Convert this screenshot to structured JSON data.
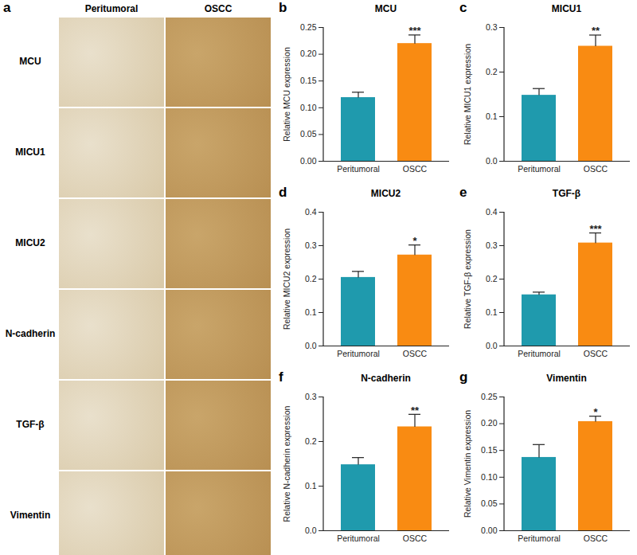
{
  "image_panel": {
    "panel": "a",
    "columns": [
      "Peritumoral",
      "OSCC"
    ],
    "rows": [
      "MCU",
      "MICU1",
      "MICU2",
      "N-cadherin",
      "TGF-β",
      "Vimentin"
    ]
  },
  "chart_data": [
    {
      "panel": "b",
      "type": "bar",
      "title": "MCU",
      "y_label": "Relative MCU expression",
      "categories": [
        "Peritumoral",
        "OSCC"
      ],
      "values": [
        0.119,
        0.22
      ],
      "errors": [
        0.01,
        0.016
      ],
      "colors": [
        "#1f9aad",
        "#f98b12"
      ],
      "significance": "***",
      "ylim": [
        0,
        0.25
      ],
      "yticks": [
        {
          "value": 0,
          "label": "0.00"
        },
        {
          "value": 0.05,
          "label": "0.05"
        },
        {
          "value": 0.1,
          "label": "0.10"
        },
        {
          "value": 0.15,
          "label": "0.15"
        },
        {
          "value": 0.2,
          "label": "0.20"
        },
        {
          "value": 0.25,
          "label": "0.25"
        }
      ]
    },
    {
      "panel": "c",
      "type": "bar",
      "title": "MICU1",
      "y_label": "Relative MICU1 expression",
      "categories": [
        "Peritumoral",
        "OSCC"
      ],
      "values": [
        0.148,
        0.258
      ],
      "errors": [
        0.015,
        0.025
      ],
      "colors": [
        "#1f9aad",
        "#f98b12"
      ],
      "significance": "**",
      "ylim": [
        0,
        0.3
      ],
      "yticks": [
        {
          "value": 0,
          "label": "0.0"
        },
        {
          "value": 0.1,
          "label": "0.1"
        },
        {
          "value": 0.2,
          "label": "0.2"
        },
        {
          "value": 0.3,
          "label": "0.3"
        }
      ]
    },
    {
      "panel": "d",
      "type": "bar",
      "title": "MICU2",
      "y_label": "Relative MICU2 expression",
      "categories": [
        "Peritumoral",
        "OSCC"
      ],
      "values": [
        0.205,
        0.272
      ],
      "errors": [
        0.018,
        0.03
      ],
      "colors": [
        "#1f9aad",
        "#f98b12"
      ],
      "significance": "*",
      "ylim": [
        0,
        0.4
      ],
      "yticks": [
        {
          "value": 0,
          "label": "0.0"
        },
        {
          "value": 0.1,
          "label": "0.1"
        },
        {
          "value": 0.2,
          "label": "0.2"
        },
        {
          "value": 0.3,
          "label": "0.3"
        },
        {
          "value": 0.4,
          "label": "0.4"
        }
      ]
    },
    {
      "panel": "e",
      "type": "bar",
      "title": "TGF-β",
      "y_label": "Relative TGF-β expression",
      "categories": [
        "Peritumoral",
        "OSCC"
      ],
      "values": [
        0.153,
        0.308
      ],
      "errors": [
        0.008,
        0.03
      ],
      "colors": [
        "#1f9aad",
        "#f98b12"
      ],
      "significance": "***",
      "ylim": [
        0,
        0.4
      ],
      "yticks": [
        {
          "value": 0,
          "label": "0.0"
        },
        {
          "value": 0.1,
          "label": "0.1"
        },
        {
          "value": 0.2,
          "label": "0.2"
        },
        {
          "value": 0.3,
          "label": "0.3"
        },
        {
          "value": 0.4,
          "label": "0.4"
        }
      ]
    },
    {
      "panel": "f",
      "type": "bar",
      "title": "N-cadherin",
      "y_label": "Relative N-cadherin expression",
      "categories": [
        "Peritumoral",
        "OSCC"
      ],
      "values": [
        0.148,
        0.233
      ],
      "errors": [
        0.016,
        0.028
      ],
      "colors": [
        "#1f9aad",
        "#f98b12"
      ],
      "significance": "**",
      "ylim": [
        0,
        0.3
      ],
      "yticks": [
        {
          "value": 0,
          "label": "0.0"
        },
        {
          "value": 0.1,
          "label": "0.1"
        },
        {
          "value": 0.2,
          "label": "0.2"
        },
        {
          "value": 0.3,
          "label": "0.3"
        }
      ]
    },
    {
      "panel": "g",
      "type": "bar",
      "title": "Vimentin",
      "y_label": "Relative Vimentin expression",
      "categories": [
        "Peritumoral",
        "OSCC"
      ],
      "values": [
        0.137,
        0.204
      ],
      "errors": [
        0.024,
        0.01
      ],
      "colors": [
        "#1f9aad",
        "#f98b12"
      ],
      "significance": "*",
      "ylim": [
        0,
        0.25
      ],
      "yticks": [
        {
          "value": 0,
          "label": "0.00"
        },
        {
          "value": 0.05,
          "label": "0.05"
        },
        {
          "value": 0.1,
          "label": "0.10"
        },
        {
          "value": 0.15,
          "label": "0.15"
        },
        {
          "value": 0.2,
          "label": "0.20"
        },
        {
          "value": 0.25,
          "label": "0.25"
        }
      ]
    }
  ]
}
